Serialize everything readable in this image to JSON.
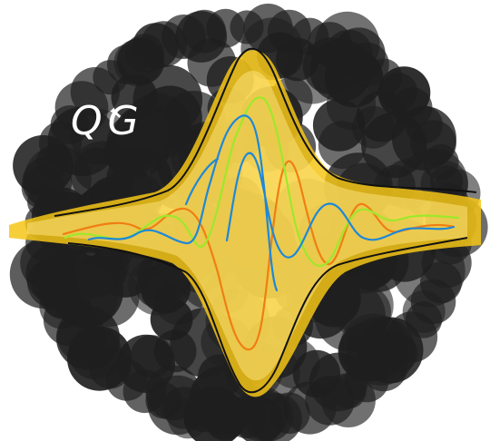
{
  "logo": {
    "text": "QG",
    "text_color": "#ffffff"
  },
  "colors": {
    "background": "#ffffff",
    "blob": "#0d0d0d",
    "band": "#f5c518",
    "band_light": "#fbe27a",
    "curve_blue": "#1e88d8",
    "curve_orange": "#f07e12",
    "curve_green": "#9ee82a",
    "outline": "#111111"
  },
  "icons": {
    "blob": "ink-blob-icon",
    "band": "yellow-glow-icon",
    "waves": "wave-lines-icon"
  }
}
